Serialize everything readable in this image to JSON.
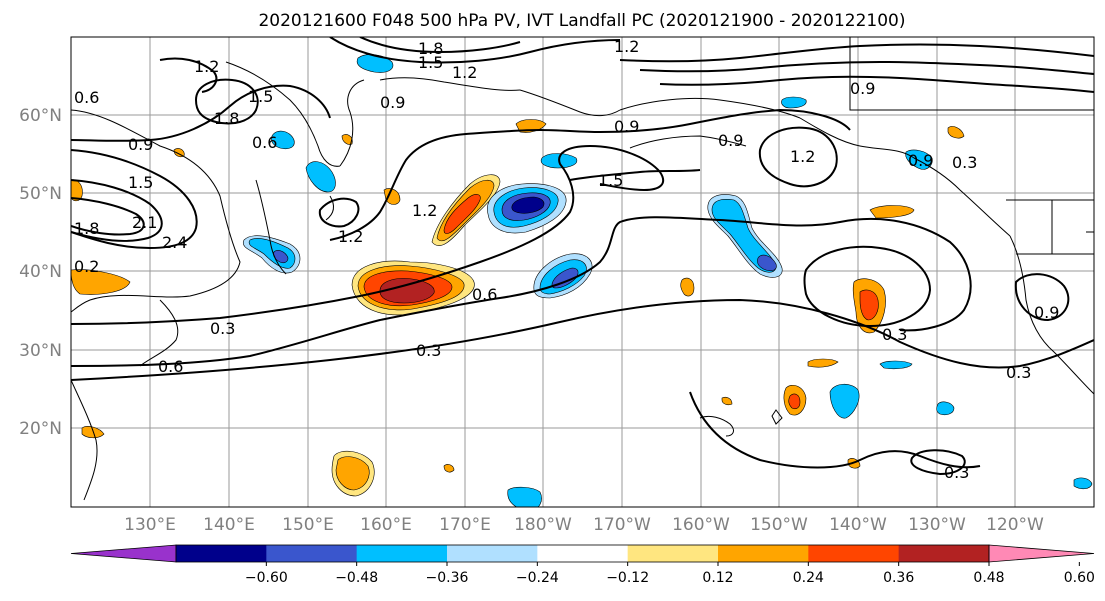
{
  "title": "2020121600 F048 500 hPa PV, IVT Landfall PC (2020121900 - 2020122100)",
  "lat_labels": [
    "60°N",
    "50°N",
    "40°N",
    "30°N",
    "20°N"
  ],
  "lon_labels": [
    "130°E",
    "140°E",
    "150°E",
    "160°E",
    "170°E",
    "180°W",
    "170°W",
    "160°W",
    "150°W",
    "140°W",
    "130°W",
    "120°W"
  ],
  "contour_labels": [
    "1.8",
    "1.5",
    "1.2",
    "1.2",
    "1.2",
    "0.9",
    "0.6",
    "1.8",
    "1.5",
    "0.9",
    "0.6",
    "0.9",
    "1.5",
    "2.1",
    "1.8",
    "2.4",
    "1.2",
    "1.2",
    "0.9",
    "1.5",
    "0.9",
    "1.2",
    "0.6",
    "0.9",
    "0.3",
    "0.3",
    "0.3",
    "0.6",
    "0.3",
    "0.3",
    "0.3",
    "0.2",
    "0.9"
  ],
  "colorbar": {
    "colors": [
      "#9932cc",
      "#00008b",
      "#3a56cd",
      "#00bfff",
      "#b0e0ff",
      "#ffffff",
      "#ffe680",
      "#ffa500",
      "#ff4500",
      "#b22222",
      "#ff89b5"
    ],
    "tick_labels": [
      "−0.60",
      "−0.48",
      "−0.36",
      "−0.24",
      "−0.12",
      "0.12",
      "0.24",
      "0.36",
      "0.48",
      "0.60"
    ]
  }
}
